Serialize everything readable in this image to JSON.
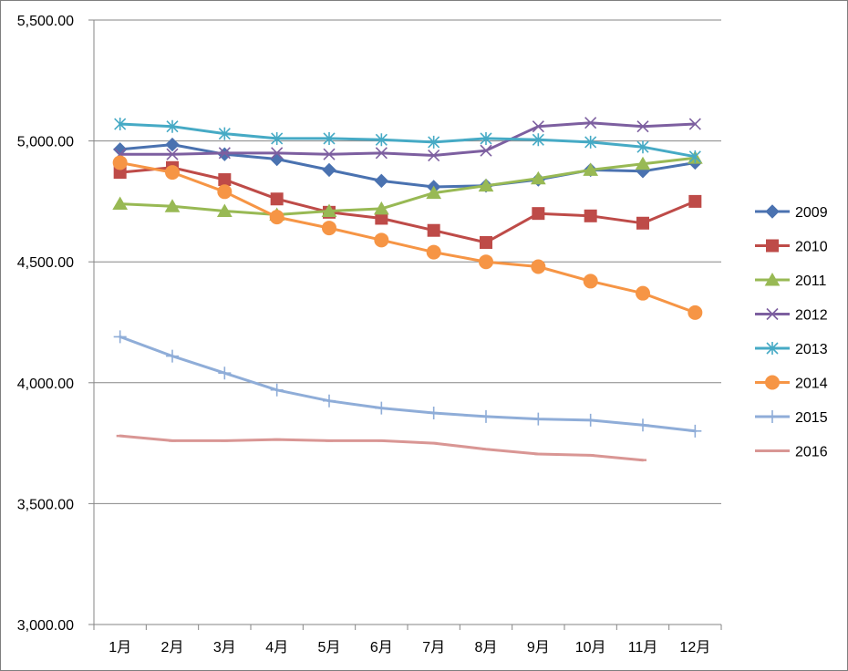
{
  "chart_data": {
    "type": "line",
    "title": "",
    "xlabel": "",
    "ylabel": "",
    "categories": [
      "1月",
      "2月",
      "3月",
      "4月",
      "5月",
      "6月",
      "7月",
      "8月",
      "9月",
      "10月",
      "11月",
      "12月"
    ],
    "ylim": [
      3000,
      5500
    ],
    "yticks": [
      3000,
      3500,
      4000,
      4500,
      5000,
      5500
    ],
    "ytick_labels": [
      "3,000.00",
      "3,500.00",
      "4,000.00",
      "4,500.00",
      "5,000.00",
      "5,500.00"
    ],
    "grid": "horizontal",
    "legend_position": "right",
    "series": [
      {
        "name": "2009",
        "color": "#4a72b0",
        "marker": "diamond",
        "values": [
          4965,
          4985,
          4945,
          4925,
          4880,
          4835,
          4810,
          4815,
          4840,
          4880,
          4875,
          4910
        ]
      },
      {
        "name": "2010",
        "color": "#be4b48",
        "marker": "square",
        "values": [
          4870,
          4890,
          4840,
          4760,
          4705,
          4680,
          4630,
          4580,
          4700,
          4690,
          4660,
          4750
        ]
      },
      {
        "name": "2011",
        "color": "#98b954",
        "marker": "triangle",
        "values": [
          4740,
          4730,
          4710,
          4695,
          4710,
          4720,
          4785,
          4815,
          4845,
          4880,
          4905,
          4930
        ]
      },
      {
        "name": "2012",
        "color": "#7d5fa0",
        "marker": "x",
        "values": [
          4945,
          4945,
          4950,
          4950,
          4945,
          4950,
          4940,
          4960,
          5060,
          5075,
          5060,
          5070
        ]
      },
      {
        "name": "2013",
        "color": "#46aac5",
        "marker": "star",
        "values": [
          5070,
          5060,
          5030,
          5010,
          5010,
          5005,
          4995,
          5010,
          5005,
          4995,
          4975,
          4935
        ]
      },
      {
        "name": "2014",
        "color": "#f69545",
        "marker": "circle",
        "values": [
          4910,
          4870,
          4790,
          4685,
          4640,
          4590,
          4540,
          4500,
          4480,
          4420,
          4370,
          4290
        ]
      },
      {
        "name": "2015",
        "color": "#8fadd8",
        "marker": "plus",
        "values": [
          4190,
          4110,
          4040,
          3970,
          3925,
          3895,
          3875,
          3860,
          3850,
          3845,
          3825,
          3800
        ]
      },
      {
        "name": "2016",
        "color": "#d99694",
        "marker": "dash",
        "values": [
          3780,
          3760,
          3760,
          3765,
          3760,
          3760,
          3750,
          3725,
          3705,
          3700,
          3680,
          null
        ]
      }
    ]
  }
}
